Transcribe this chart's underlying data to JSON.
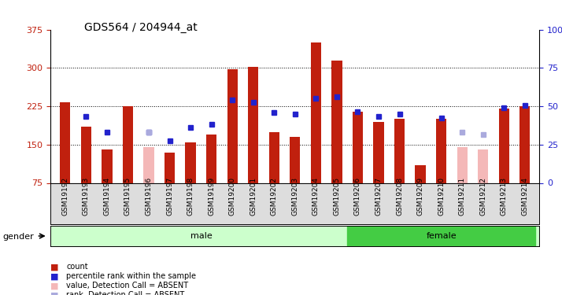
{
  "title": "GDS564 / 204944_at",
  "samples": [
    "GSM19192",
    "GSM19193",
    "GSM19194",
    "GSM19195",
    "GSM19196",
    "GSM19197",
    "GSM19198",
    "GSM19199",
    "GSM19200",
    "GSM19201",
    "GSM19202",
    "GSM19203",
    "GSM19204",
    "GSM19205",
    "GSM19206",
    "GSM19207",
    "GSM19208",
    "GSM19209",
    "GSM19210",
    "GSM19211",
    "GSM19212",
    "GSM19213",
    "GSM19214"
  ],
  "count_values": [
    232,
    185,
    140,
    225,
    null,
    135,
    155,
    170,
    298,
    302,
    175,
    165,
    350,
    315,
    215,
    195,
    200,
    110,
    200,
    null,
    null,
    220,
    225
  ],
  "absent_values": [
    null,
    null,
    null,
    null,
    145,
    null,
    null,
    null,
    null,
    null,
    null,
    null,
    null,
    null,
    null,
    null,
    null,
    null,
    null,
    145,
    140,
    null,
    null
  ],
  "percentile_values": [
    null,
    205,
    175,
    null,
    175,
    158,
    183,
    190,
    237,
    232,
    212,
    210,
    240,
    243,
    215,
    205,
    210,
    null,
    202,
    null,
    null,
    222,
    227
  ],
  "absent_rank_values": [
    null,
    null,
    null,
    null,
    175,
    null,
    null,
    null,
    null,
    null,
    null,
    null,
    null,
    null,
    null,
    null,
    null,
    null,
    null,
    175,
    170,
    null,
    null
  ],
  "gender": [
    "male",
    "male",
    "male",
    "male",
    "male",
    "male",
    "male",
    "male",
    "male",
    "male",
    "male",
    "male",
    "male",
    "male",
    "female",
    "female",
    "female",
    "female",
    "female",
    "female",
    "female",
    "female",
    "female"
  ],
  "ylim_left": [
    75,
    375
  ],
  "ylim_right": [
    0,
    100
  ],
  "yticks_left": [
    75,
    150,
    225,
    300,
    375
  ],
  "yticks_right": [
    0,
    25,
    50,
    75,
    100
  ],
  "bar_color": "#c0200e",
  "absent_bar_color": "#f4b8b8",
  "percentile_color": "#2222cc",
  "absent_rank_color": "#aaaadd",
  "male_bg": "#ccffcc",
  "female_bg": "#44cc44",
  "xlabel_color": "#c0200e",
  "ylabel_right_color": "#2222cc",
  "grid_color": "black",
  "bar_width": 0.5
}
